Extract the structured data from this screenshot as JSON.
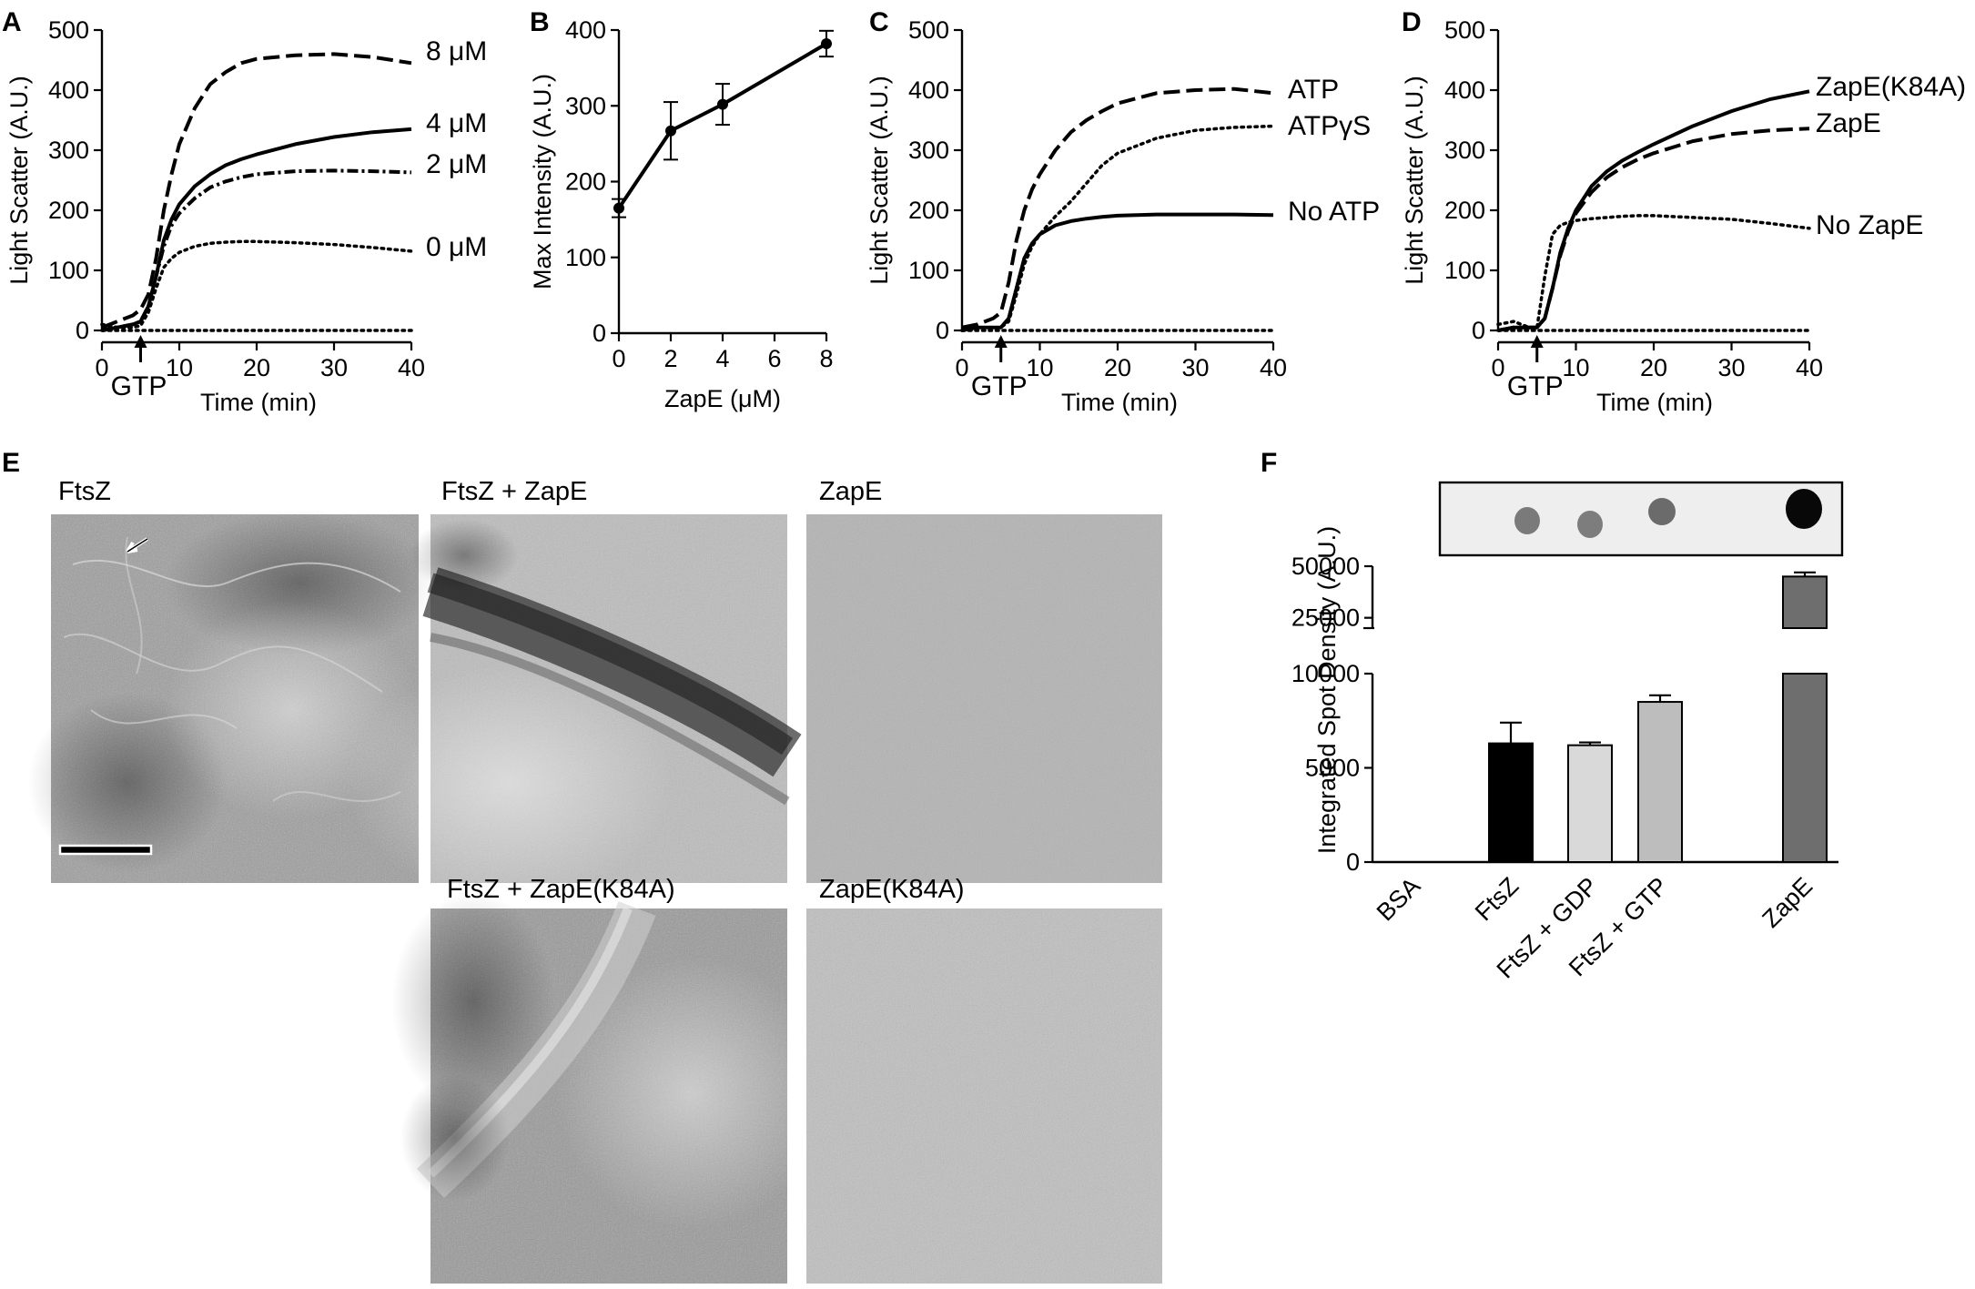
{
  "panel_letters": [
    "A",
    "B",
    "C",
    "D",
    "E",
    "F"
  ],
  "chart_data": [
    {
      "panel": "A",
      "type": "line",
      "xlabel": "Time (min)",
      "ylabel": "Light Scatter (A.U.)",
      "xlim": [
        0,
        40
      ],
      "ylim": [
        0,
        500
      ],
      "xticks": [
        0,
        10,
        20,
        30,
        40
      ],
      "yticks": [
        0,
        100,
        200,
        300,
        400,
        500
      ],
      "annotation": "GTP",
      "annotation_x": 5,
      "series": [
        {
          "name": "8 μM",
          "style": "dashed",
          "x": [
            0,
            2,
            4,
            5,
            6,
            7,
            8,
            9,
            10,
            12,
            14,
            16,
            18,
            20,
            25,
            30,
            35,
            40
          ],
          "y": [
            5,
            15,
            25,
            35,
            60,
            120,
            200,
            260,
            310,
            370,
            410,
            430,
            445,
            452,
            458,
            460,
            455,
            445
          ]
        },
        {
          "name": "4 μM",
          "style": "solid",
          "x": [
            0,
            2,
            4,
            5,
            6,
            7,
            8,
            9,
            10,
            12,
            14,
            16,
            18,
            20,
            25,
            30,
            35,
            40
          ],
          "y": [
            0,
            5,
            10,
            15,
            40,
            90,
            150,
            185,
            210,
            240,
            260,
            275,
            285,
            293,
            310,
            322,
            330,
            335
          ]
        },
        {
          "name": "2 μM",
          "style": "dashdot",
          "x": [
            0,
            2,
            4,
            5,
            6,
            7,
            8,
            9,
            10,
            12,
            14,
            16,
            18,
            20,
            25,
            30,
            35,
            40
          ],
          "y": [
            0,
            5,
            10,
            15,
            40,
            90,
            140,
            175,
            195,
            220,
            238,
            248,
            255,
            260,
            265,
            266,
            265,
            263
          ]
        },
        {
          "name": "0 μM",
          "style": "dotted",
          "x": [
            0,
            2,
            4,
            5,
            6,
            7,
            8,
            9,
            10,
            12,
            14,
            16,
            18,
            20,
            25,
            30,
            35,
            40
          ],
          "y": [
            10,
            5,
            5,
            8,
            30,
            70,
            105,
            120,
            130,
            140,
            145,
            147,
            148,
            148,
            146,
            143,
            138,
            132
          ]
        },
        {
          "name": "",
          "style": "dotted",
          "x": [
            0,
            40
          ],
          "y": [
            0,
            0
          ]
        }
      ]
    },
    {
      "panel": "B",
      "type": "line",
      "xlabel": "ZapE (μM)",
      "ylabel": "Max Intensity (A.U.)",
      "xlim": [
        0,
        8
      ],
      "ylim": [
        0,
        400
      ],
      "xticks": [
        0,
        2,
        4,
        6,
        8
      ],
      "yticks": [
        0,
        100,
        200,
        300,
        400
      ],
      "series": [
        {
          "name": "",
          "x": [
            0,
            2,
            4,
            8
          ],
          "y": [
            165,
            267,
            302,
            382
          ],
          "error": [
            12,
            38,
            27,
            17
          ]
        }
      ]
    },
    {
      "panel": "C",
      "type": "line",
      "xlabel": "Time (min)",
      "ylabel": "Light Scatter (A.U.)",
      "xlim": [
        0,
        40
      ],
      "ylim": [
        0,
        500
      ],
      "xticks": [
        0,
        10,
        20,
        30,
        40
      ],
      "yticks": [
        0,
        100,
        200,
        300,
        400,
        500
      ],
      "annotation": "GTP",
      "annotation_x": 5,
      "series": [
        {
          "name": "ATP",
          "style": "dashed",
          "x": [
            0,
            2,
            4,
            5,
            6,
            7,
            8,
            9,
            10,
            12,
            14,
            16,
            18,
            20,
            25,
            30,
            35,
            40
          ],
          "y": [
            5,
            10,
            20,
            30,
            80,
            150,
            200,
            235,
            260,
            300,
            330,
            350,
            365,
            378,
            395,
            400,
            402,
            395
          ]
        },
        {
          "name": "ATPγS",
          "style": "dotted",
          "x": [
            0,
            2,
            4,
            5,
            6,
            7,
            8,
            9,
            10,
            12,
            14,
            16,
            18,
            20,
            25,
            30,
            35,
            40
          ],
          "y": [
            0,
            5,
            5,
            5,
            15,
            60,
            110,
            140,
            160,
            190,
            215,
            245,
            275,
            295,
            320,
            333,
            338,
            340
          ]
        },
        {
          "name": "No ATP",
          "style": "solid",
          "x": [
            0,
            2,
            4,
            5,
            6,
            7,
            8,
            9,
            10,
            12,
            14,
            16,
            18,
            20,
            25,
            30,
            35,
            40
          ],
          "y": [
            0,
            5,
            5,
            5,
            20,
            70,
            120,
            145,
            160,
            175,
            182,
            186,
            189,
            191,
            193,
            193,
            193,
            192
          ]
        },
        {
          "name": "",
          "style": "dotted",
          "x": [
            0,
            40
          ],
          "y": [
            0,
            0
          ]
        }
      ]
    },
    {
      "panel": "D",
      "type": "line",
      "xlabel": "Time (min)",
      "ylabel": "Light Scatter (A.U.)",
      "xlim": [
        0,
        40
      ],
      "ylim": [
        0,
        500
      ],
      "xticks": [
        0,
        10,
        20,
        30,
        40
      ],
      "yticks": [
        0,
        100,
        200,
        300,
        400,
        500
      ],
      "annotation": "GTP",
      "annotation_x": 5,
      "series": [
        {
          "name": "ZapE(K84A)",
          "style": "solid",
          "x": [
            0,
            2,
            4,
            5,
            6,
            7,
            8,
            9,
            10,
            12,
            14,
            16,
            18,
            20,
            25,
            30,
            35,
            40
          ],
          "y": [
            0,
            5,
            5,
            5,
            20,
            70,
            130,
            170,
            200,
            240,
            265,
            283,
            297,
            310,
            340,
            365,
            385,
            398
          ]
        },
        {
          "name": "ZapE",
          "style": "dashed",
          "x": [
            0,
            2,
            4,
            5,
            6,
            7,
            8,
            9,
            10,
            12,
            14,
            16,
            18,
            20,
            25,
            30,
            35,
            40
          ],
          "y": [
            0,
            5,
            5,
            5,
            20,
            70,
            125,
            165,
            195,
            230,
            255,
            272,
            285,
            295,
            315,
            327,
            333,
            336
          ]
        },
        {
          "name": "No ZapE",
          "style": "dotted",
          "x": [
            0,
            2,
            4,
            5,
            6,
            7,
            8,
            9,
            10,
            12,
            14,
            16,
            18,
            20,
            25,
            30,
            35,
            40
          ],
          "y": [
            10,
            15,
            5,
            5,
            90,
            160,
            175,
            180,
            183,
            186,
            188,
            190,
            191,
            191,
            188,
            185,
            178,
            170
          ]
        },
        {
          "name": "",
          "style": "dotted",
          "x": [
            0,
            40
          ],
          "y": [
            0,
            0
          ]
        }
      ]
    },
    {
      "panel": "F",
      "type": "bar",
      "ylabel": "Integrated Spot Density (A.U.)",
      "categories": [
        "BSA",
        "FtsZ",
        "FtsZ + GDP",
        "FtsZ + GTP",
        "ZapE"
      ],
      "values": [
        0,
        6300,
        6200,
        8500,
        45000
      ],
      "error": [
        0,
        1100,
        150,
        350,
        2000
      ],
      "colors": [
        "#ffffff",
        "#000000",
        "#d9d9d9",
        "#bdbdbd",
        "#6e6e6e"
      ],
      "lower_yticks": [
        0,
        5000,
        10000
      ],
      "upper_yticks": [
        25000,
        50000
      ],
      "ylim_lower": [
        0,
        10000
      ],
      "ylim_upper": [
        20000,
        50000
      ],
      "axis_break": true
    }
  ],
  "micrographs": {
    "labels": [
      "FtsZ",
      "FtsZ + ZapE",
      "ZapE",
      "FtsZ + ZapE(K84A)",
      "ZapE(K84A)"
    ]
  }
}
